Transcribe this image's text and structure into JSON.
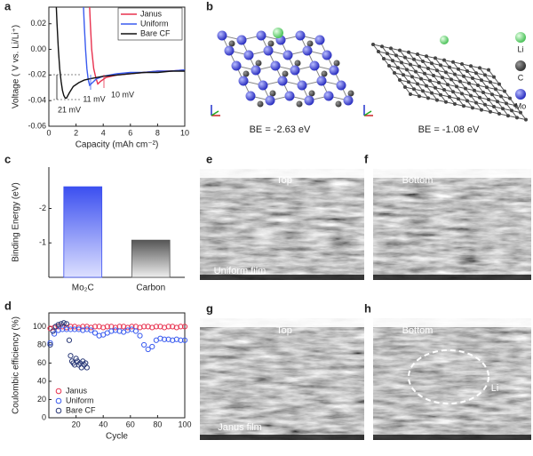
{
  "chart_data": [
    {
      "type": "line",
      "x_label": "Capacity (mAh cm⁻²)",
      "y_label": "Voltage ( V vs. Li/Li⁺)",
      "xlim": [
        0,
        10
      ],
      "xticks": [
        0,
        2,
        4,
        6,
        8,
        10
      ],
      "ylim": [
        -0.06,
        0.033
      ],
      "yticks": [
        0.02,
        {
          "value": 0,
          "label": "0.00"
        },
        -0.02,
        -0.04,
        -0.06
      ],
      "legend": "upper right",
      "series": [
        {
          "name": "Janus",
          "color": "#e8324f",
          "x": [
            3.0,
            3.05,
            3.15,
            3.3,
            3.45,
            3.6,
            3.8,
            4.2,
            5,
            6,
            7,
            8,
            9,
            10
          ],
          "values": [
            0.033,
            0.02,
            0.0,
            -0.015,
            -0.022,
            -0.027,
            -0.025,
            -0.022,
            -0.02,
            -0.019,
            -0.018,
            -0.017,
            -0.017,
            -0.016
          ]
        },
        {
          "name": "Uniform",
          "color": "#3a5bef",
          "x": [
            2.55,
            2.6,
            2.7,
            2.8,
            2.9,
            3.0,
            3.2,
            3.5,
            4,
            5,
            6,
            7,
            8,
            9,
            10
          ],
          "values": [
            0.033,
            0.02,
            0.0,
            -0.015,
            -0.024,
            -0.028,
            -0.026,
            -0.023,
            -0.021,
            -0.019,
            -0.018,
            -0.018,
            -0.017,
            -0.017,
            -0.016
          ]
        },
        {
          "name": "Bare CF",
          "color": "#111111",
          "x": [
            0.55,
            0.6,
            0.7,
            0.8,
            0.9,
            1.0,
            1.1,
            1.2,
            1.3,
            1.5,
            1.8,
            2.2,
            2.6,
            3,
            4,
            5,
            6,
            7,
            8,
            9,
            10
          ],
          "values": [
            0.033,
            0.02,
            0.0,
            -0.015,
            -0.025,
            -0.032,
            -0.036,
            -0.038,
            -0.038,
            -0.034,
            -0.029,
            -0.026,
            -0.024,
            -0.023,
            -0.021,
            -0.02,
            -0.019,
            -0.018,
            -0.018,
            -0.017,
            -0.017
          ]
        }
      ],
      "annotations": [
        {
          "text": "21 mV",
          "color": "#111111"
        },
        {
          "text": "11 mV",
          "color": "#3a5bef"
        },
        {
          "text": "10 mV",
          "color": "#e8324f"
        }
      ]
    },
    {
      "type": "bar",
      "y_label": "Binding Energy (eV)",
      "categories": [
        "Mo₂C",
        "Carbon"
      ],
      "values": [
        -2.63,
        -1.08
      ],
      "colors": [
        "#3b4ff0",
        "#555555"
      ],
      "ylim": [
        0,
        -3.2
      ],
      "yticks": [
        -2,
        -1
      ]
    },
    {
      "type": "scatter",
      "x_label": "Cycle",
      "y_label": "Coulombic efficiency (%)",
      "xlim": [
        0,
        100
      ],
      "xticks": [
        20,
        40,
        60,
        80,
        100
      ],
      "ylim": [
        0,
        115
      ],
      "yticks": [
        0,
        20,
        40,
        60,
        80,
        100
      ],
      "legend": "lower left",
      "series": [
        {
          "name": "Janus",
          "color": "#e8324f",
          "x": [
            1,
            4,
            7,
            10,
            13,
            16,
            19,
            22,
            25,
            28,
            31,
            34,
            37,
            40,
            43,
            46,
            49,
            52,
            55,
            58,
            61,
            64,
            67,
            70,
            73,
            76,
            79,
            82,
            85,
            88,
            91,
            94,
            97,
            100
          ],
          "values": [
            98,
            99,
            100,
            100,
            99,
            100,
            100,
            99,
            100,
            100,
            99,
            100,
            100,
            99,
            100,
            100,
            99,
            100,
            100,
            99,
            100,
            100,
            99,
            100,
            100,
            99,
            100,
            100,
            99,
            100,
            100,
            99,
            100,
            100
          ]
        },
        {
          "name": "Uniform",
          "color": "#3a5bef",
          "x": [
            1,
            4,
            7,
            10,
            13,
            16,
            19,
            22,
            25,
            28,
            31,
            34,
            37,
            40,
            43,
            46,
            49,
            52,
            55,
            58,
            61,
            64,
            67,
            70,
            73,
            76,
            79,
            82,
            85,
            88,
            91,
            94,
            97,
            100
          ],
          "values": [
            82,
            92,
            96,
            97,
            97,
            97,
            97,
            97,
            96,
            97,
            96,
            93,
            90,
            91,
            93,
            95,
            96,
            95,
            94,
            96,
            97,
            95,
            90,
            80,
            75,
            78,
            85,
            87,
            86,
            86,
            85,
            86,
            85,
            85
          ]
        },
        {
          "name": "Bare CF",
          "color": "#2b3a78",
          "x": [
            1,
            3,
            5,
            7,
            9,
            11,
            13,
            15,
            16,
            17,
            18,
            19,
            20,
            21,
            22,
            23,
            24,
            25,
            26,
            27,
            28
          ],
          "values": [
            80,
            95,
            100,
            102,
            103,
            104,
            103,
            85,
            68,
            62,
            60,
            58,
            65,
            62,
            58,
            60,
            55,
            62,
            58,
            60,
            55
          ]
        }
      ]
    }
  ],
  "panel_labels": [
    "a",
    "b",
    "c",
    "d",
    "e",
    "f",
    "g",
    "h"
  ],
  "structures": [
    "BE = -2.63 eV",
    "BE = -1.08 eV"
  ],
  "atom_legend": [
    "Li",
    "C",
    "Mo"
  ],
  "sem_images": [
    [
      "Top",
      "Uniform film"
    ],
    [
      "Bottom"
    ],
    [
      "Top",
      "Janus film"
    ],
    [
      "Bottom",
      "Li"
    ]
  ]
}
